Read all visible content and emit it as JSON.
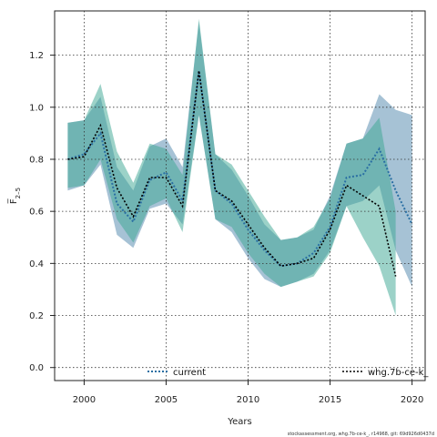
{
  "chart_data": {
    "type": "line",
    "title": "",
    "xlabel": "Years",
    "ylabel": "F̅",
    "ylabel_sub": "2–5",
    "xlim": [
      1998.2,
      2020.8
    ],
    "ylim": [
      -0.05,
      1.37
    ],
    "x_ticks": [
      2000,
      2005,
      2010,
      2015,
      2020
    ],
    "y_ticks": [
      0.0,
      0.2,
      0.4,
      0.6,
      0.8,
      1.0,
      1.2
    ],
    "x_tick_labels": [
      "2000",
      "2005",
      "2010",
      "2015",
      "2020"
    ],
    "y_tick_labels": [
      "0.0",
      "0.2",
      "0.4",
      "0.6",
      "0.8",
      "1.0",
      "1.2"
    ],
    "grid": true,
    "legend": "bottom",
    "series": [
      {
        "name": "current",
        "color": "#2a6fa3",
        "band_color": "#5c8fb3",
        "x": [
          1999,
          2000,
          2001,
          2002,
          2003,
          2004,
          2005,
          2006,
          2007,
          2008,
          2009,
          2010,
          2011,
          2012,
          2013,
          2014,
          2015,
          2016,
          2017,
          2018,
          2019,
          2020
        ],
        "values": [
          0.8,
          0.82,
          0.9,
          0.63,
          0.56,
          0.72,
          0.75,
          0.64,
          1.14,
          0.68,
          0.63,
          0.53,
          0.45,
          0.39,
          0.4,
          0.44,
          0.54,
          0.73,
          0.74,
          0.84,
          0.68,
          0.55
        ],
        "lower": [
          0.68,
          0.7,
          0.78,
          0.51,
          0.46,
          0.61,
          0.63,
          0.55,
          0.97,
          0.57,
          0.52,
          0.42,
          0.34,
          0.31,
          0.33,
          0.36,
          0.45,
          0.62,
          0.64,
          0.7,
          0.45,
          0.31
        ],
        "upper": [
          0.94,
          0.95,
          1.04,
          0.77,
          0.68,
          0.85,
          0.88,
          0.77,
          1.33,
          0.82,
          0.76,
          0.66,
          0.55,
          0.49,
          0.5,
          0.53,
          0.66,
          0.86,
          0.88,
          1.05,
          0.99,
          0.97
        ]
      },
      {
        "name": "whg.7b-ce-k_",
        "color": "#000000",
        "band_color": "#3aa592",
        "x": [
          1999,
          2000,
          2001,
          2002,
          2003,
          2004,
          2005,
          2006,
          2007,
          2008,
          2009,
          2010,
          2011,
          2012,
          2013,
          2014,
          2015,
          2016,
          2017,
          2018,
          2019
        ],
        "values": [
          0.8,
          0.81,
          0.93,
          0.69,
          0.58,
          0.73,
          0.73,
          0.62,
          1.14,
          0.68,
          0.64,
          0.55,
          0.46,
          0.39,
          0.4,
          0.42,
          0.53,
          0.7,
          0.66,
          0.62,
          0.35
        ],
        "lower": [
          0.69,
          0.7,
          0.8,
          0.57,
          0.48,
          0.62,
          0.65,
          0.52,
          0.97,
          0.57,
          0.54,
          0.44,
          0.36,
          0.31,
          0.33,
          0.35,
          0.44,
          0.62,
          0.5,
          0.39,
          0.2
        ],
        "upper": [
          0.94,
          0.95,
          1.09,
          0.83,
          0.71,
          0.86,
          0.84,
          0.74,
          1.34,
          0.82,
          0.78,
          0.68,
          0.58,
          0.49,
          0.5,
          0.54,
          0.65,
          0.86,
          0.88,
          0.96,
          0.6
        ]
      }
    ]
  },
  "footer": {
    "text": "stockassessment.org, whg.7b-ce-k_, r14968, git: 69d926d0437d"
  }
}
